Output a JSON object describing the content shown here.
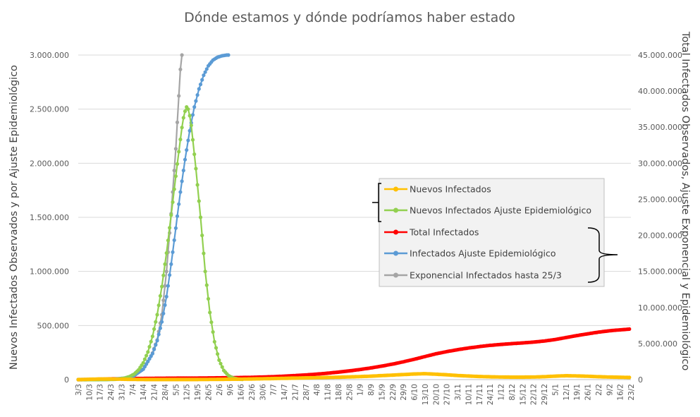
{
  "chart_data": {
    "type": "line",
    "title": "Dónde estamos y dónde podríamos haber estado",
    "ylabel": "Nuevos Infectados Observados y por Ajuste Epidemiológico",
    "y2label": "Total Infectados Observados, Ajuste Exponencial y Epidemiológico",
    "ylim": [
      0,
      3000000
    ],
    "y2lim": [
      0,
      45000000
    ],
    "y_ticks": [
      "0",
      "500.000",
      "1.000.000",
      "1.500.000",
      "2.000.000",
      "2.500.000",
      "3.000.000"
    ],
    "y2_ticks": [
      "0",
      "5.000.000",
      "10.000.000",
      "15.000.000",
      "20.000.000",
      "25.000.000",
      "30.000.000",
      "35.000.000",
      "40.000.000",
      "45.000.000"
    ],
    "x_tick_labels": [
      "3/3",
      "10/3",
      "17/3",
      "24/3",
      "31/3",
      "7/4",
      "14/4",
      "21/4",
      "28/4",
      "5/5",
      "12/5",
      "19/5",
      "26/5",
      "2/6",
      "9/6",
      "16/6",
      "23/6",
      "30/6",
      "7/7",
      "14/7",
      "21/7",
      "28/7",
      "4/8",
      "11/8",
      "18/8",
      "25/8",
      "1/9",
      "8/9",
      "15/9",
      "22/9",
      "29/9",
      "6/10",
      "13/10",
      "20/10",
      "27/10",
      "3/11",
      "10/11",
      "17/11",
      "24/11",
      "1/12",
      "8/12",
      "15/12",
      "22/12",
      "29/12",
      "5/1",
      "12/1",
      "19/1",
      "26/1",
      "2/2",
      "9/2",
      "16/2",
      "23/2"
    ],
    "grid": true,
    "legend_position": "center-right",
    "series": [
      {
        "name": "Nuevos Infectados",
        "axis": "left",
        "color": "#FFC000",
        "x_index": [
          0,
          7,
          14,
          21,
          28,
          35,
          42,
          49,
          56,
          63,
          70,
          77,
          84,
          91,
          98,
          105,
          112,
          119,
          126,
          133,
          140,
          147,
          154,
          161,
          168,
          175,
          182,
          189,
          196,
          203,
          210,
          217,
          224,
          231,
          238,
          245,
          252,
          259,
          266,
          273,
          280,
          287,
          294,
          301,
          308,
          315,
          322,
          329,
          336,
          343,
          350,
          356
        ],
        "values": [
          0,
          3000,
          6000,
          6000,
          4000,
          2000,
          1000,
          700,
          500,
          500,
          600,
          900,
          1500,
          2500,
          3500,
          4500,
          6000,
          8000,
          10000,
          12000,
          14000,
          16000,
          18000,
          20000,
          22000,
          25000,
          28000,
          32000,
          37000,
          42000,
          47000,
          52000,
          55000,
          50000,
          45000,
          38000,
          33000,
          29000,
          26000,
          24000,
          23000,
          23000,
          24000,
          27000,
          32000,
          36000,
          34000,
          31000,
          27000,
          24000,
          22000,
          20000
        ]
      },
      {
        "name": "Nuevos Infectados Ajuste Epidemiológico",
        "axis": "left",
        "color": "#92D050",
        "x_index": [
          0,
          3,
          6,
          9,
          12,
          15,
          18,
          21,
          24,
          27,
          30,
          33,
          36,
          39,
          42,
          45,
          48,
          51,
          54,
          57,
          60,
          63,
          66,
          67,
          68,
          69,
          70,
          71,
          72,
          73,
          76,
          79,
          82,
          85,
          88,
          91,
          94,
          97,
          100,
          103,
          106
        ],
        "values": [
          10,
          20,
          40,
          90,
          200,
          400,
          900,
          1800,
          3500,
          7000,
          14000,
          27000,
          50000,
          90000,
          155000,
          255000,
          400000,
          600000,
          860000,
          1170000,
          1520000,
          1880000,
          2220000,
          2330000,
          2420000,
          2480000,
          2520000,
          2500000,
          2440000,
          2350000,
          1950000,
          1500000,
          1000000,
          620000,
          350000,
          180000,
          85000,
          38000,
          15000,
          6000,
          2000
        ]
      },
      {
        "name": "Total Infectados",
        "axis": "right",
        "color": "#FF0000",
        "x_index": [
          0,
          7,
          14,
          21,
          28,
          35,
          42,
          49,
          56,
          63,
          70,
          77,
          84,
          91,
          98,
          105,
          112,
          119,
          126,
          133,
          140,
          147,
          154,
          161,
          168,
          175,
          182,
          189,
          196,
          203,
          210,
          217,
          224,
          231,
          238,
          245,
          252,
          259,
          266,
          273,
          280,
          287,
          294,
          301,
          308,
          315,
          322,
          329,
          336,
          343,
          350,
          356
        ],
        "values": [
          0,
          15000,
          60000,
          100000,
          130000,
          150000,
          170000,
          180000,
          190000,
          200000,
          210000,
          220000,
          230000,
          245000,
          265000,
          290000,
          320000,
          360000,
          410000,
          480000,
          560000,
          650000,
          760000,
          890000,
          1040000,
          1210000,
          1400000,
          1620000,
          1870000,
          2150000,
          2470000,
          2820000,
          3200000,
          3580000,
          3880000,
          4150000,
          4380000,
          4580000,
          4750000,
          4880000,
          4990000,
          5090000,
          5200000,
          5350000,
          5560000,
          5830000,
          6100000,
          6350000,
          6580000,
          6770000,
          6900000,
          7000000
        ]
      },
      {
        "name": "Infectados Ajuste Epidemiológico",
        "axis": "right",
        "color": "#5B9BD5",
        "x_index": [
          0,
          6,
          12,
          18,
          24,
          30,
          36,
          42,
          48,
          51,
          54,
          57,
          60,
          63,
          66,
          69,
          72,
          75,
          78,
          81,
          84,
          87,
          90,
          93,
          96,
          99,
          102,
          108,
          114,
          120,
          126,
          132,
          138
        ],
        "values": [
          0,
          5000,
          12000,
          30000,
          80000,
          200000,
          560000,
          1450000,
          3600000,
          5400000,
          8000000,
          11500000,
          16000000,
          21000000,
          26000000,
          30500000,
          34500000,
          37800000,
          40300000,
          42200000,
          43500000,
          44300000,
          44700000,
          44900000,
          45000000,
          45050000,
          45070000,
          45080000,
          45090000,
          45090000,
          45100000,
          45100000,
          45100000
        ]
      },
      {
        "name": "Exponencial Infectados hasta 25/3",
        "axis": "right",
        "color": "#A5A5A5",
        "x_index": [
          0,
          6,
          12,
          18,
          24,
          30,
          36,
          42,
          45,
          48,
          51,
          54,
          57,
          60,
          63,
          66,
          67
        ],
        "values": [
          0,
          5000,
          12000,
          30000,
          80000,
          200000,
          560000,
          1450000,
          2500000,
          3700000,
          5500000,
          9000000,
          15000000,
          23000000,
          32000000,
          43000000,
          46000000
        ]
      }
    ]
  }
}
